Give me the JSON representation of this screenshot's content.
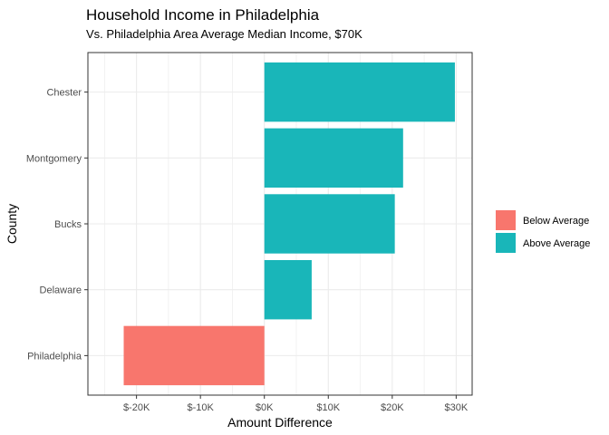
{
  "chart_data": {
    "type": "bar",
    "orientation": "horizontal",
    "title": "Household Income in Philadelphia",
    "subtitle": "Vs. Philadelphia Area Average Median Income, $70K",
    "xlabel": "Amount Difference",
    "ylabel": "County",
    "categories": [
      "Chester",
      "Montgomery",
      "Bucks",
      "Delaware",
      "Philadelphia"
    ],
    "values": [
      29800,
      21700,
      20400,
      7400,
      -22000
    ],
    "groups": [
      "Above Average",
      "Above Average",
      "Above Average",
      "Above Average",
      "Below Average"
    ],
    "highlighted_category": "Philadelphia",
    "highlight_color": "#ff0000",
    "x_ticks": [
      -20000,
      -10000,
      0,
      10000,
      20000,
      30000
    ],
    "x_tick_labels": [
      "$-20K",
      "$-10K",
      "$0K",
      "$10K",
      "$20K",
      "$30K"
    ],
    "xlim": [
      -27600,
      32500
    ],
    "grid": true,
    "legend": {
      "position": "right",
      "entries": [
        {
          "label": "Below Average",
          "color": "#f8766d"
        },
        {
          "label": "Above Average",
          "color": "#19b6b9"
        }
      ]
    }
  }
}
